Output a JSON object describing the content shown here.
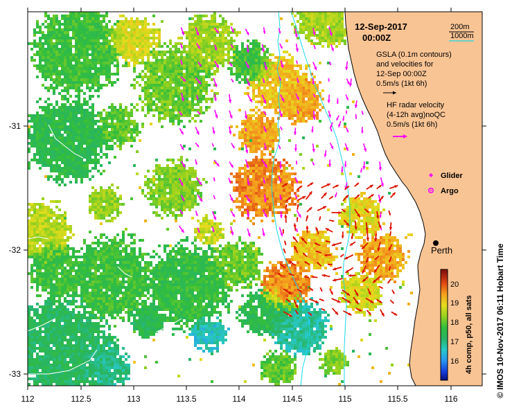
{
  "map": {
    "date": "12-Sep-2017",
    "time": "00:00Z",
    "x_ticks": [
      "112",
      "112.5",
      "113",
      "113.5",
      "114",
      "114.5",
      "115",
      "115.5",
      "116"
    ],
    "y_ticks": [
      "-31",
      "-32",
      "-33"
    ],
    "lon_range": [
      112,
      116.3
    ],
    "lat_range": [
      -33.1,
      -30.1
    ]
  },
  "legend": {
    "contour_200": "200m",
    "contour_1000": "1000m",
    "gsla_line1": "GSLA (0.1m contours)",
    "gsla_line2": "and velocities for",
    "gsla_line3": "12-Sep 00:00Z",
    "gsla_scale": "0.5m/s (1kt 6h)",
    "hf_line1": "HF radar velocity",
    "hf_line2": "(4-12h avg)noQC",
    "hf_scale": "0.5m/s (1kt 6h)",
    "glider": "Glider",
    "argo": "Argo",
    "contour_200_color": "#000000",
    "contour_1000_color": "#18d8e8"
  },
  "city": {
    "name": "Perth"
  },
  "colorbar": {
    "ticks": [
      "20",
      "19",
      "18",
      "17",
      "16"
    ],
    "label": "4h comp, p50, all sats"
  },
  "credit": "© IMOS 10-Nov-2017 06:11 Hobart Time",
  "colors": {
    "land": "#f9c494",
    "gsla_arrows": "#ff00ff",
    "hf_arrows": "#dd1100",
    "shelf_contour": "#18d8e8"
  }
}
